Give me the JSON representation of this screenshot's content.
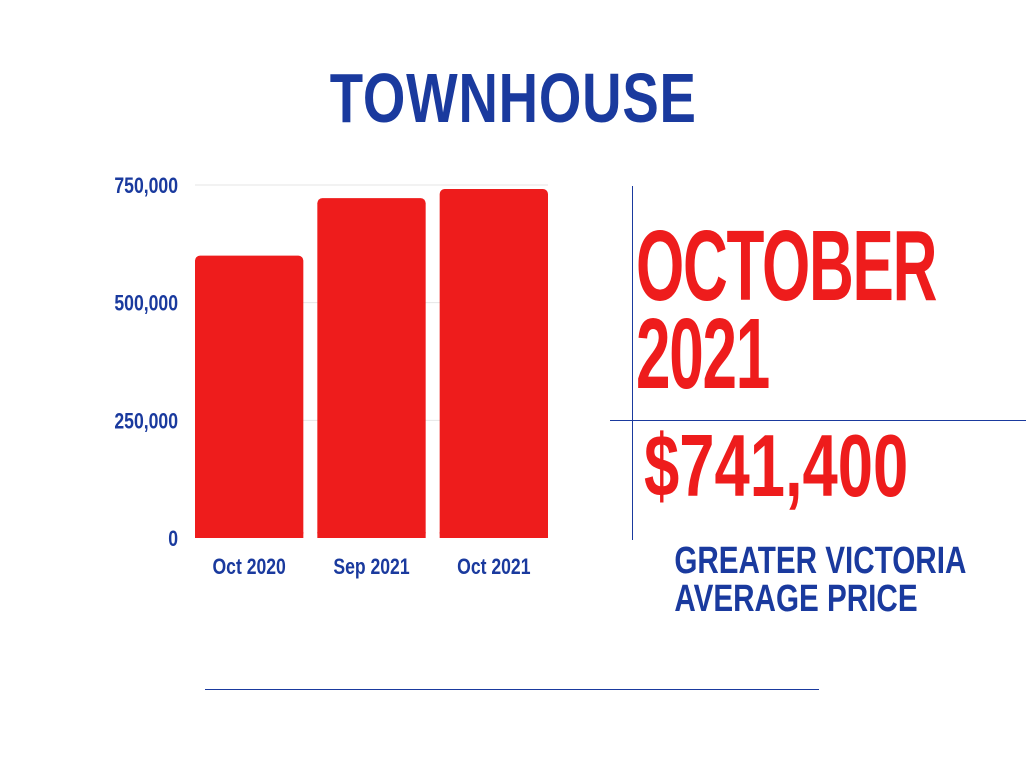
{
  "title": "TOWNHOUSE",
  "period_month": "OCTOBER",
  "period_year": "2021",
  "price": "$741,400",
  "caption_line1": "GREATER VICTORIA",
  "caption_line2": "AVERAGE PRICE",
  "colors": {
    "bar": "#ee1c1c",
    "text_blue": "#1a3a9e",
    "accent_red": "#ee1c1c"
  },
  "chart_data": {
    "type": "bar",
    "categories": [
      "Oct 2020",
      "Sep 2021",
      "Oct 2021"
    ],
    "values": [
      600000,
      722000,
      741400
    ],
    "yticks": [
      0,
      250000,
      500000,
      750000
    ],
    "ytick_labels": [
      "0",
      "250,000",
      "500,000",
      "750,000"
    ],
    "ylim": [
      0,
      750000
    ],
    "title": "",
    "xlabel": "",
    "ylabel": "",
    "grid": true,
    "legend": "none"
  }
}
